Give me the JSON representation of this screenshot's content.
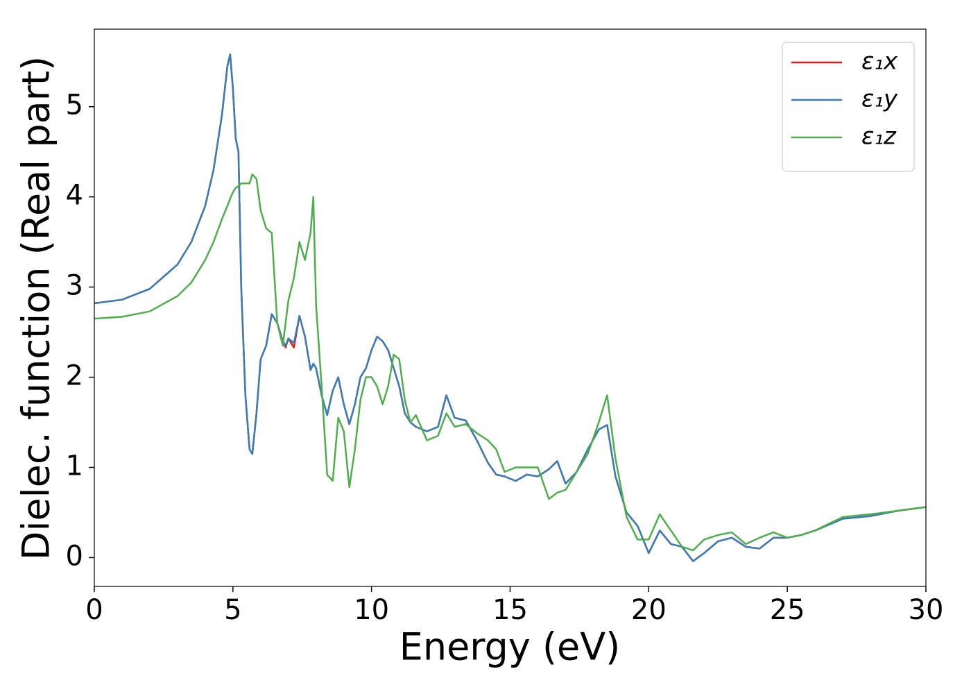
{
  "chart_data": {
    "type": "line",
    "xlabel": "Energy (eV)",
    "ylabel": "Dielec. function (Real part)",
    "xlim": [
      0,
      30
    ],
    "ylim": [
      -0.32,
      5.86
    ],
    "xticks": [
      0,
      5,
      10,
      15,
      20,
      25,
      30
    ],
    "yticks": [
      0,
      1,
      2,
      3,
      4,
      5
    ],
    "legend": "upper right",
    "x": [
      0,
      1,
      2,
      3,
      3.5,
      4,
      4.3,
      4.6,
      4.8,
      4.9,
      5.0,
      5.1,
      5.2,
      5.3,
      5.45,
      5.6,
      5.7,
      5.85,
      6.0,
      6.2,
      6.4,
      6.6,
      6.8,
      6.9,
      7.0,
      7.2,
      7.4,
      7.6,
      7.8,
      7.9,
      8.0,
      8.2,
      8.4,
      8.6,
      8.8,
      9.0,
      9.2,
      9.4,
      9.6,
      9.8,
      10.0,
      10.2,
      10.4,
      10.6,
      10.8,
      11.0,
      11.2,
      11.4,
      11.6,
      12.0,
      12.4,
      12.7,
      13.0,
      13.4,
      13.8,
      14.2,
      14.5,
      14.8,
      15.2,
      15.6,
      16.0,
      16.4,
      16.7,
      17.0,
      17.4,
      17.8,
      18.2,
      18.5,
      18.8,
      19.2,
      19.6,
      20.0,
      20.4,
      20.8,
      21.2,
      21.6,
      22.0,
      22.5,
      23.0,
      23.5,
      24.0,
      24.5,
      25.0,
      25.5,
      26.0,
      27,
      28,
      29,
      30
    ],
    "series": [
      {
        "name": "ε₁x",
        "color": "#e41a1c",
        "values": [
          2.82,
          2.86,
          2.98,
          3.25,
          3.5,
          3.9,
          4.3,
          4.9,
          5.45,
          5.58,
          5.2,
          4.65,
          4.5,
          3.0,
          1.8,
          1.2,
          1.15,
          1.6,
          2.2,
          2.35,
          2.7,
          2.6,
          2.4,
          2.33,
          2.43,
          2.33,
          2.68,
          2.45,
          2.08,
          2.15,
          2.1,
          1.8,
          1.58,
          1.85,
          2.0,
          1.7,
          1.48,
          1.7,
          2.0,
          2.1,
          2.3,
          2.45,
          2.4,
          2.3,
          2.1,
          1.9,
          1.6,
          1.5,
          1.45,
          1.4,
          1.45,
          1.8,
          1.55,
          1.52,
          1.3,
          1.05,
          0.92,
          0.9,
          0.85,
          0.92,
          0.9,
          0.98,
          1.07,
          0.82,
          0.95,
          1.2,
          1.42,
          1.47,
          0.9,
          0.5,
          0.35,
          0.05,
          0.3,
          0.15,
          0.12,
          -0.04,
          0.05,
          0.18,
          0.22,
          0.12,
          0.1,
          0.22,
          0.22,
          0.25,
          0.3,
          0.43,
          0.46,
          0.52,
          0.56
        ]
      },
      {
        "name": "ε₁y",
        "color": "#377eb8",
        "values": [
          2.82,
          2.86,
          2.98,
          3.25,
          3.5,
          3.9,
          4.3,
          4.9,
          5.45,
          5.58,
          5.2,
          4.65,
          4.5,
          3.0,
          1.8,
          1.2,
          1.15,
          1.6,
          2.2,
          2.35,
          2.7,
          2.6,
          2.4,
          2.35,
          2.43,
          2.38,
          2.68,
          2.45,
          2.08,
          2.15,
          2.1,
          1.8,
          1.58,
          1.85,
          2.0,
          1.7,
          1.48,
          1.7,
          2.0,
          2.1,
          2.3,
          2.45,
          2.4,
          2.3,
          2.1,
          1.9,
          1.6,
          1.5,
          1.45,
          1.4,
          1.45,
          1.8,
          1.55,
          1.52,
          1.3,
          1.05,
          0.92,
          0.9,
          0.85,
          0.92,
          0.9,
          0.98,
          1.07,
          0.82,
          0.95,
          1.2,
          1.42,
          1.47,
          0.9,
          0.5,
          0.35,
          0.05,
          0.3,
          0.15,
          0.12,
          -0.04,
          0.05,
          0.18,
          0.22,
          0.12,
          0.1,
          0.22,
          0.22,
          0.25,
          0.3,
          0.43,
          0.46,
          0.52,
          0.56
        ]
      },
      {
        "name": "ε₁z",
        "color": "#4daf4a",
        "values": [
          2.65,
          2.67,
          2.73,
          2.9,
          3.05,
          3.3,
          3.5,
          3.75,
          3.9,
          3.98,
          4.05,
          4.1,
          4.12,
          4.15,
          4.15,
          4.15,
          4.25,
          4.2,
          3.85,
          3.65,
          3.6,
          2.6,
          2.35,
          2.6,
          2.85,
          3.1,
          3.5,
          3.3,
          3.6,
          4.0,
          2.8,
          1.9,
          0.92,
          0.85,
          1.55,
          1.4,
          0.78,
          1.2,
          1.75,
          2.0,
          2.0,
          1.9,
          1.7,
          1.9,
          2.25,
          2.2,
          1.75,
          1.5,
          1.58,
          1.3,
          1.35,
          1.6,
          1.45,
          1.48,
          1.38,
          1.3,
          1.2,
          0.95,
          1.0,
          1.0,
          1.0,
          0.65,
          0.72,
          0.75,
          0.95,
          1.15,
          1.5,
          1.8,
          1.1,
          0.45,
          0.2,
          0.2,
          0.48,
          0.3,
          0.12,
          0.08,
          0.2,
          0.25,
          0.28,
          0.15,
          0.22,
          0.28,
          0.22,
          0.25,
          0.3,
          0.45,
          0.48,
          0.52,
          0.56
        ]
      }
    ]
  }
}
